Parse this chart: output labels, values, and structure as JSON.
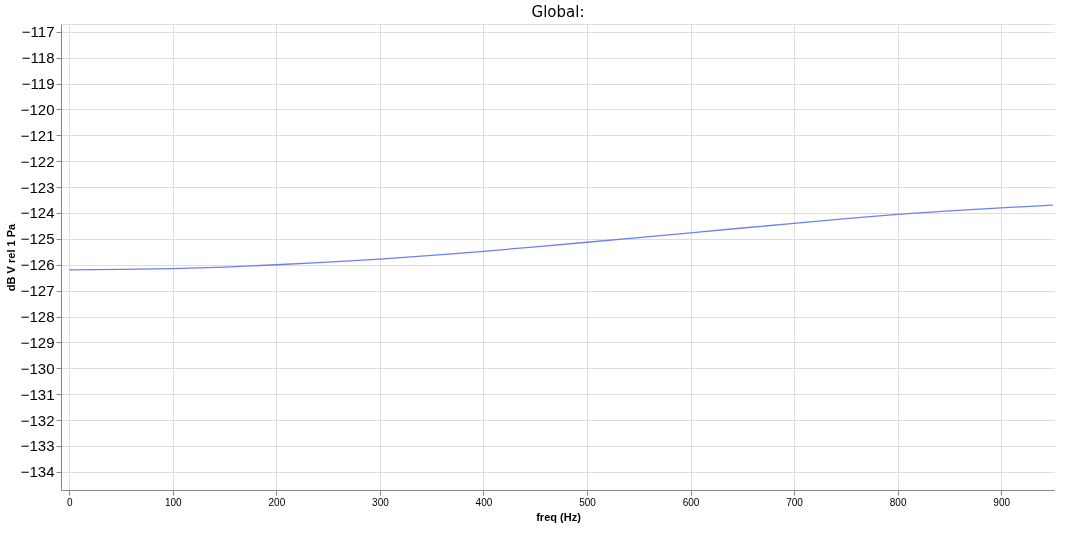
{
  "chart_data": {
    "type": "line",
    "title": "Global:",
    "xlabel": "freq (Hz)",
    "ylabel": "dB V rel 1 Pa",
    "x": [
      0,
      50,
      100,
      150,
      200,
      250,
      300,
      350,
      400,
      450,
      500,
      550,
      600,
      650,
      700,
      750,
      800,
      850,
      900,
      950
    ],
    "series": [
      {
        "color": "#6f7ff2",
        "values": [
          -126.2,
          -126.18,
          -126.15,
          -126.09,
          -126.0,
          -125.9,
          -125.78,
          -125.64,
          -125.48,
          -125.31,
          -125.13,
          -124.95,
          -124.77,
          -124.58,
          -124.4,
          -124.22,
          -124.05,
          -123.92,
          -123.8,
          -123.7
        ]
      }
    ],
    "xlim": [
      -8,
      952
    ],
    "xticks": [
      0,
      100,
      200,
      300,
      400,
      500,
      600,
      700,
      800,
      900
    ],
    "ylim": [
      -134.7,
      -116.7
    ],
    "yticks": [
      -134,
      -133,
      -132,
      -131,
      -130,
      -129,
      -128,
      -127,
      -126,
      -125,
      -124,
      -123,
      -122,
      -121,
      -120,
      -119,
      -118,
      -117
    ],
    "grid": true,
    "marker": "none",
    "line_style": "solid"
  }
}
